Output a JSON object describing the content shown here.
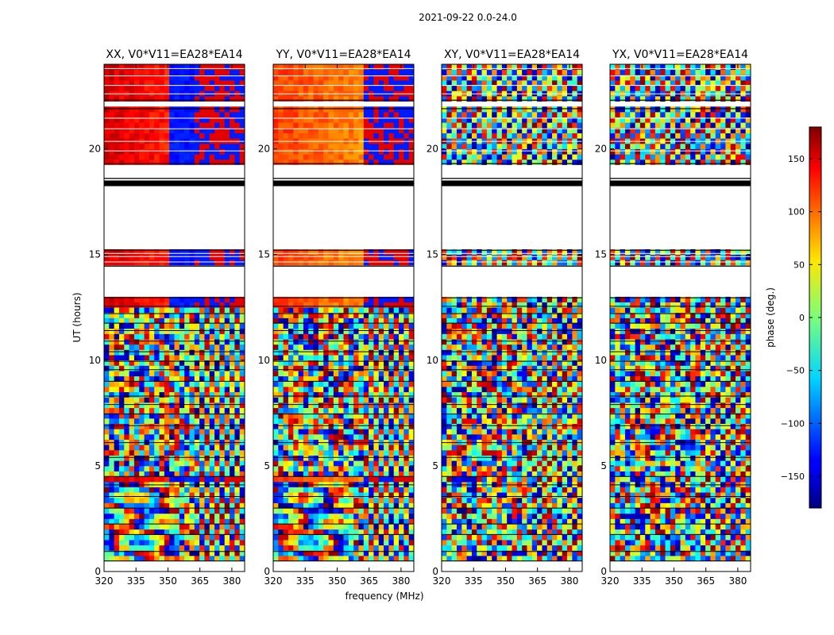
{
  "figure": {
    "suptitle": "2021-09-22 0.0-24.0",
    "xlabel": "frequency (MHz)",
    "ylabel": "UT (hours)"
  },
  "chart_data": {
    "type": "heatmap",
    "x_range_mhz": [
      320,
      386
    ],
    "y_range_hours": [
      0,
      24
    ],
    "x_ticks": [
      320,
      335,
      350,
      365,
      380
    ],
    "y_ticks": [
      0,
      5,
      10,
      15,
      20
    ],
    "grid": false,
    "panels": [
      {
        "title": "XX, V0*V11=EA28*EA14",
        "product": "XX"
      },
      {
        "title": "YY, V0*V11=EA28*EA14",
        "product": "YY"
      },
      {
        "title": "XY, V0*V11=EA28*EA14",
        "product": "XY"
      },
      {
        "title": "YX, V0*V11=EA28*EA14",
        "product": "YX"
      }
    ],
    "flagged_gaps_hours": [
      [
        0,
        0.5
      ],
      [
        12.95,
        14.45
      ],
      [
        15.2,
        18.3
      ],
      [
        18.6,
        19.3
      ],
      [
        21.9,
        22.3
      ]
    ],
    "data_bands_hours": [
      {
        "from": 0.5,
        "to": 4.6,
        "character": "noisy phase, structured fringes"
      },
      {
        "from": 4.6,
        "to": 12.95,
        "character": "noisy phase with horizontal flagged lines"
      },
      {
        "from": 14.45,
        "to": 15.2,
        "character": "coherent phase low-frequency"
      },
      {
        "from": 18.3,
        "to": 18.6,
        "character": "black flagged strip"
      },
      {
        "from": 19.3,
        "to": 21.9,
        "character": "coherent phase"
      },
      {
        "from": 22.3,
        "to": 24.0,
        "character": "coherent phase"
      }
    ],
    "colorbar": {
      "label": "phase (deg.)",
      "range": [
        -180,
        180
      ],
      "ticks": [
        150,
        100,
        50,
        0,
        -50,
        -100,
        -150
      ],
      "colormap": "jet"
    }
  }
}
